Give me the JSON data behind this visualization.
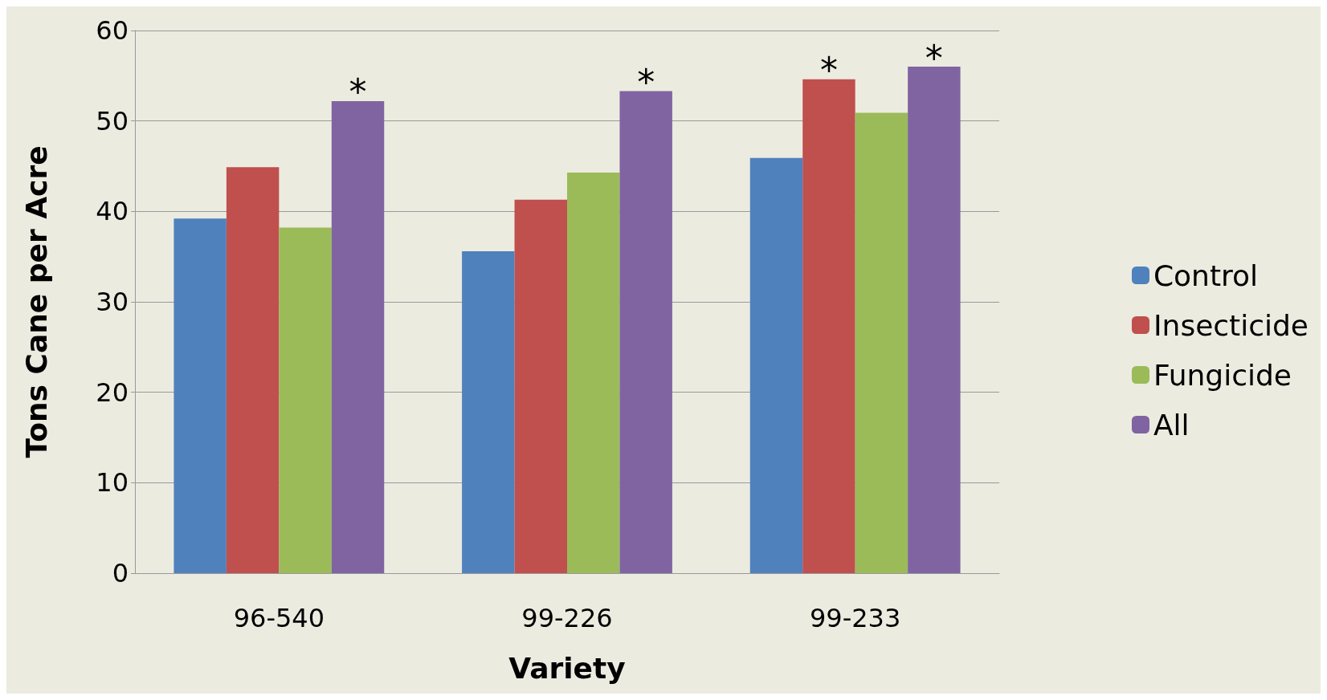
{
  "chart_data": {
    "type": "bar",
    "xlabel": "Variety",
    "ylabel": "Tons Cane per Acre",
    "categories": [
      "96-540",
      "99-226",
      "99-233"
    ],
    "series": [
      {
        "name": "Control",
        "color": "#4f81bd",
        "values": [
          39.2,
          35.6,
          45.9
        ]
      },
      {
        "name": "Insecticide",
        "color": "#c0504d",
        "values": [
          44.9,
          41.3,
          54.6
        ],
        "value_labels": [
          null,
          null,
          "*"
        ]
      },
      {
        "name": "Fungicide",
        "color": "#9bbb59",
        "values": [
          38.2,
          44.3,
          50.9
        ]
      },
      {
        "name": "All",
        "color": "#8064a2",
        "values": [
          52.2,
          53.3,
          56.0
        ],
        "value_labels": [
          "*",
          "*",
          "*"
        ]
      }
    ],
    "ylim": [
      0,
      60
    ],
    "yticks": [
      0,
      10,
      20,
      30,
      40,
      50,
      60
    ],
    "grid": "y",
    "legend": "right"
  }
}
